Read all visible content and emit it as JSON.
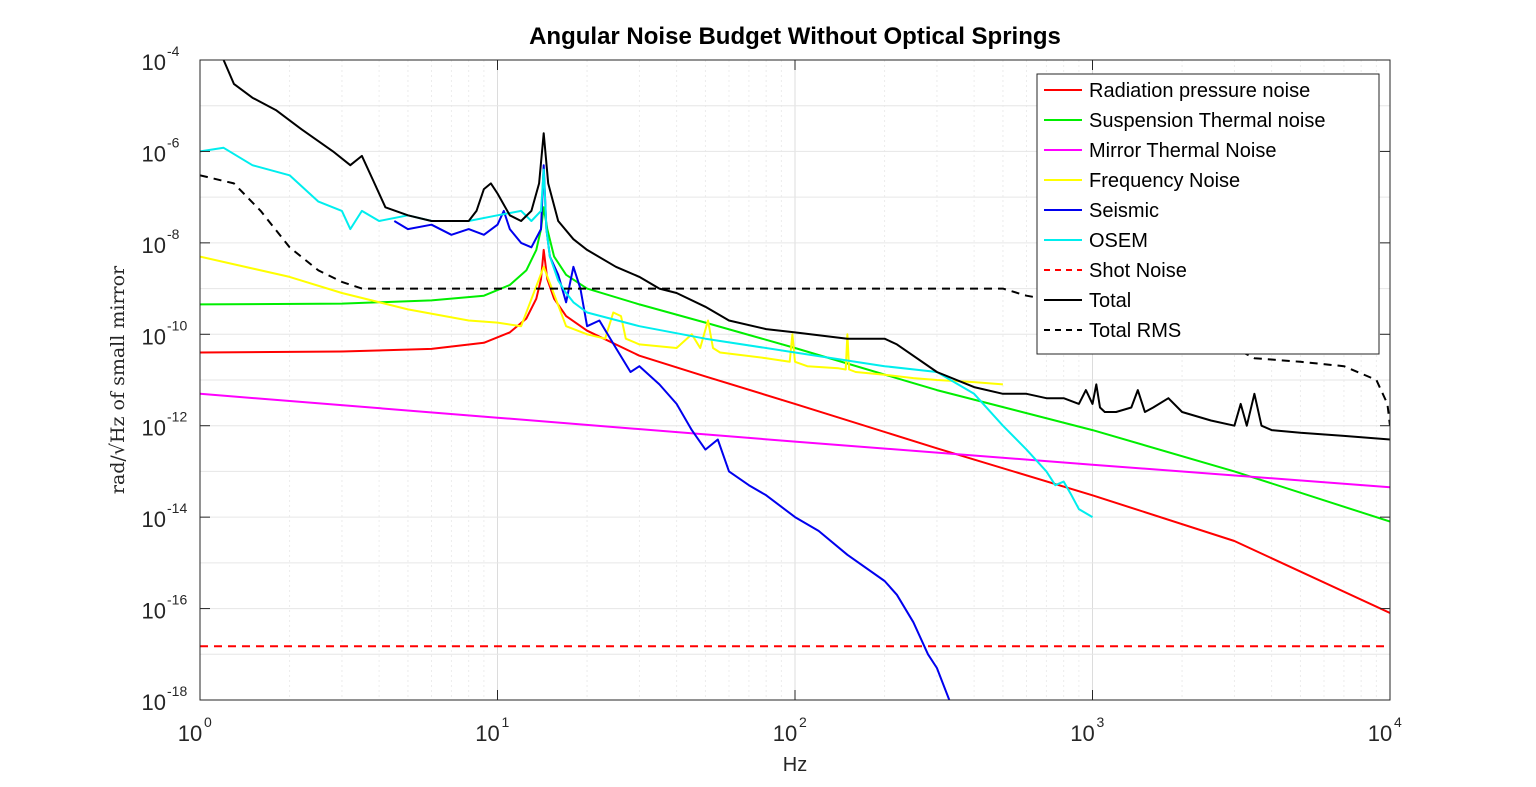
{
  "chart_data": {
    "type": "line",
    "title": "Angular Noise Budget Without Optical Springs",
    "xlabel": "Hz",
    "ylabel": "rad/√Hz of small mirror",
    "xscale": "log",
    "yscale": "log",
    "xlim": [
      1,
      10000
    ],
    "ylim": [
      1e-18,
      0.0001
    ],
    "grid": true,
    "legend_position": "top-right",
    "x_ticks": [
      {
        "value": 1,
        "base": "10",
        "exp": "0"
      },
      {
        "value": 10,
        "base": "10",
        "exp": "1"
      },
      {
        "value": 100,
        "base": "10",
        "exp": "2"
      },
      {
        "value": 1000,
        "base": "10",
        "exp": "3"
      },
      {
        "value": 10000,
        "base": "10",
        "exp": "4"
      }
    ],
    "y_ticks": [
      {
        "value": 1e-18,
        "base": "10",
        "exp": "-18"
      },
      {
        "value": 1e-16,
        "base": "10",
        "exp": "-16"
      },
      {
        "value": 1e-14,
        "base": "10",
        "exp": "-14"
      },
      {
        "value": 1e-12,
        "base": "10",
        "exp": "-12"
      },
      {
        "value": 1e-10,
        "base": "10",
        "exp": "-10"
      },
      {
        "value": 1e-08,
        "base": "10",
        "exp": "-8"
      },
      {
        "value": 1e-06,
        "base": "10",
        "exp": "-6"
      },
      {
        "value": 0.0001,
        "base": "10",
        "exp": "-4"
      }
    ],
    "series": [
      {
        "name": "Radiation pressure noise",
        "color": "#ff0000",
        "dash": "solid",
        "x": [
          1,
          3,
          6,
          9,
          11,
          12.5,
          13.5,
          14,
          14.3,
          14.7,
          15.5,
          17,
          20,
          30,
          50,
          100,
          300,
          1000,
          3000,
          10000
        ],
        "y": [
          4e-11,
          4.2e-11,
          4.8e-11,
          6.5e-11,
          1.1e-10,
          2.2e-10,
          6e-10,
          1.6e-09,
          7e-09,
          1.6e-09,
          6e-10,
          2.5e-10,
          1.2e-10,
          3.4e-11,
          1.2e-11,
          3e-12,
          3.2e-13,
          3e-14,
          3e-15,
          8e-17
        ]
      },
      {
        "name": "Suspension Thermal noise",
        "color": "#00ee00",
        "dash": "solid",
        "x": [
          1,
          3,
          6,
          9,
          11,
          12.5,
          13.5,
          14,
          14.3,
          14.7,
          15.5,
          17,
          20,
          30,
          50,
          100,
          300,
          1000,
          3000,
          10000
        ],
        "y": [
          4.5e-10,
          4.7e-10,
          5.5e-10,
          7e-10,
          1.2e-09,
          2.5e-09,
          7e-09,
          2e-08,
          6e-08,
          2e-08,
          5e-09,
          2e-09,
          1e-09,
          4.5e-10,
          1.8e-10,
          5e-11,
          6e-12,
          8e-13,
          1e-13,
          8e-15
        ]
      },
      {
        "name": "Mirror Thermal Noise",
        "color": "#ff00ff",
        "dash": "solid",
        "x": [
          1,
          10,
          100,
          1000,
          10000
        ],
        "y": [
          5e-12,
          1.5e-12,
          4.5e-13,
          1.4e-13,
          4.5e-14
        ]
      },
      {
        "name": "Frequency Noise",
        "color": "#ffff00",
        "dash": "solid",
        "x": [
          1,
          2,
          3,
          5,
          8,
          10,
          12,
          14.3,
          17,
          20,
          23,
          24.5,
          26,
          27,
          30,
          40,
          45,
          48,
          51,
          53,
          56,
          80,
          96,
          98,
          100,
          110,
          140,
          148,
          150,
          152,
          160,
          200,
          250,
          300,
          400,
          500
        ],
        "y": [
          5e-09,
          1.8e-09,
          8e-10,
          3.5e-10,
          2e-10,
          1.8e-10,
          1.5e-10,
          3e-09,
          1.5e-10,
          1e-10,
          8e-11,
          3e-10,
          2.5e-10,
          8e-11,
          6e-11,
          5e-11,
          1e-10,
          5e-11,
          2e-10,
          5e-11,
          4e-11,
          3e-11,
          2.5e-11,
          1e-10,
          2.5e-11,
          2e-11,
          1.8e-11,
          1.7e-11,
          1e-10,
          1.7e-11,
          1.5e-11,
          1.3e-11,
          1.1e-11,
          1e-11,
          9e-12,
          8e-12
        ]
      },
      {
        "name": "Seismic",
        "color": "#0000ee",
        "dash": "solid",
        "x": [
          4.5,
          5,
          6,
          7,
          8,
          9,
          10,
          10.5,
          11,
          12,
          13,
          14,
          14.3,
          14.6,
          15,
          16,
          17,
          18,
          19,
          20,
          22,
          25,
          28,
          30,
          35,
          40,
          45,
          50,
          55,
          60,
          70,
          80,
          100,
          120,
          150,
          200,
          220,
          250,
          280,
          300,
          330
        ],
        "y": [
          3e-08,
          2e-08,
          2.5e-08,
          1.5e-08,
          2e-08,
          1.5e-08,
          2.5e-08,
          5e-08,
          2e-08,
          1e-08,
          8e-09,
          2e-08,
          5e-07,
          2e-08,
          5e-09,
          2e-09,
          5e-10,
          3e-09,
          1e-09,
          1.5e-10,
          2e-10,
          5e-11,
          1.5e-11,
          2e-11,
          8e-12,
          3e-12,
          8e-13,
          3e-13,
          5e-13,
          1e-13,
          5e-14,
          3e-14,
          1e-14,
          5e-15,
          1.5e-15,
          4e-16,
          2e-16,
          5e-17,
          1e-17,
          5e-18,
          1e-18
        ]
      },
      {
        "name": "OSEM",
        "color": "#00eeee",
        "dash": "solid",
        "x": [
          1,
          1.2,
          1.5,
          2,
          2.5,
          3,
          3.2,
          3.5,
          4,
          5,
          6,
          8,
          10,
          12,
          13,
          14,
          14.3,
          14.6,
          15,
          16,
          17,
          18,
          20,
          30,
          50,
          100,
          200,
          300,
          400,
          500,
          600,
          700,
          750,
          800,
          850,
          900,
          1000
        ],
        "y": [
          1e-06,
          1.2e-06,
          5e-07,
          3e-07,
          8e-08,
          5e-08,
          2e-08,
          5e-08,
          3e-08,
          4e-08,
          3e-08,
          3e-08,
          4e-08,
          5e-08,
          3e-08,
          5e-08,
          4e-07,
          2e-08,
          5e-09,
          1.5e-09,
          8e-10,
          5e-10,
          3e-10,
          1.5e-10,
          8e-11,
          4e-11,
          2e-11,
          1.5e-11,
          5e-12,
          1e-12,
          3e-13,
          1e-13,
          5e-14,
          6e-14,
          3e-14,
          1.5e-14,
          1e-14
        ]
      },
      {
        "name": "Shot Noise",
        "color": "#ff0000",
        "dash": "dashed",
        "x": [
          1,
          10000
        ],
        "y": [
          1.5e-17,
          1.5e-17
        ]
      },
      {
        "name": "Total",
        "color": "#000000",
        "dash": "solid",
        "x": [
          1.2,
          1.3,
          1.5,
          1.8,
          2.2,
          2.8,
          3.2,
          3.5,
          3.8,
          4.2,
          5,
          6,
          7,
          8,
          8.5,
          9,
          9.5,
          10,
          11,
          12,
          13,
          13.8,
          14.3,
          14.8,
          16,
          18,
          20,
          25,
          30,
          35,
          40,
          50,
          60,
          80,
          100,
          150,
          200,
          220,
          300,
          400,
          500,
          600,
          700,
          800,
          900,
          950,
          1000,
          1030,
          1060,
          1100,
          1200,
          1350,
          1420,
          1500,
          1600,
          1800,
          2000,
          2500,
          3000,
          3150,
          3300,
          3500,
          3700,
          4000,
          5000,
          7000,
          10000
        ],
        "y": [
          0.0001,
          3e-05,
          1.5e-05,
          8e-06,
          3e-06,
          1e-06,
          5e-07,
          8e-07,
          2.5e-07,
          6e-08,
          4e-08,
          3e-08,
          3e-08,
          3e-08,
          5e-08,
          1.5e-07,
          2e-07,
          1.2e-07,
          4e-08,
          3e-08,
          5e-08,
          2e-07,
          2.5e-06,
          2e-07,
          3e-08,
          1.2e-08,
          7e-09,
          3e-09,
          1.8e-09,
          1e-09,
          8e-10,
          4e-10,
          2e-10,
          1.3e-10,
          1.1e-10,
          8e-11,
          8e-11,
          6e-11,
          1.5e-11,
          7e-12,
          5e-12,
          5e-12,
          4e-12,
          4e-12,
          3e-12,
          6e-12,
          3e-12,
          8e-12,
          2.5e-12,
          2e-12,
          2e-12,
          2.5e-12,
          6e-12,
          2e-12,
          2.5e-12,
          4e-12,
          2e-12,
          1.3e-12,
          1e-12,
          3e-12,
          1e-12,
          5e-12,
          1e-12,
          8e-13,
          7e-13,
          6e-13,
          5e-13
        ]
      },
      {
        "name": "Total RMS",
        "color": "#000000",
        "dash": "dashed",
        "x": [
          1,
          1.3,
          1.6,
          2,
          2.5,
          3,
          3.5,
          4,
          10,
          14.3,
          100,
          500,
          600,
          800,
          1500,
          3000,
          3500,
          5000,
          7000,
          9000,
          9800,
          10000
        ],
        "y": [
          3e-07,
          2e-07,
          5e-08,
          8e-09,
          2.5e-09,
          1.4e-09,
          1e-09,
          1e-09,
          1e-09,
          1e-09,
          1e-09,
          1e-09,
          7e-10,
          5e-10,
          1.5e-10,
          5e-11,
          3e-11,
          2.5e-11,
          2e-11,
          1e-11,
          3e-12,
          1e-12
        ]
      }
    ]
  }
}
